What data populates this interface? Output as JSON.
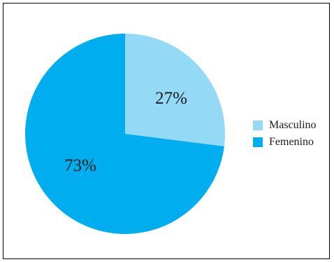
{
  "chart_data": {
    "type": "pie",
    "title": "",
    "slices": [
      {
        "label": "Masculino",
        "value": 27,
        "display": "27%",
        "color": "#94d9f6"
      },
      {
        "label": "Femenino",
        "value": 73,
        "display": "73%",
        "color": "#00aeef"
      }
    ],
    "start_angle": "12 o'clock",
    "direction": "clockwise",
    "legend_position": "right"
  }
}
